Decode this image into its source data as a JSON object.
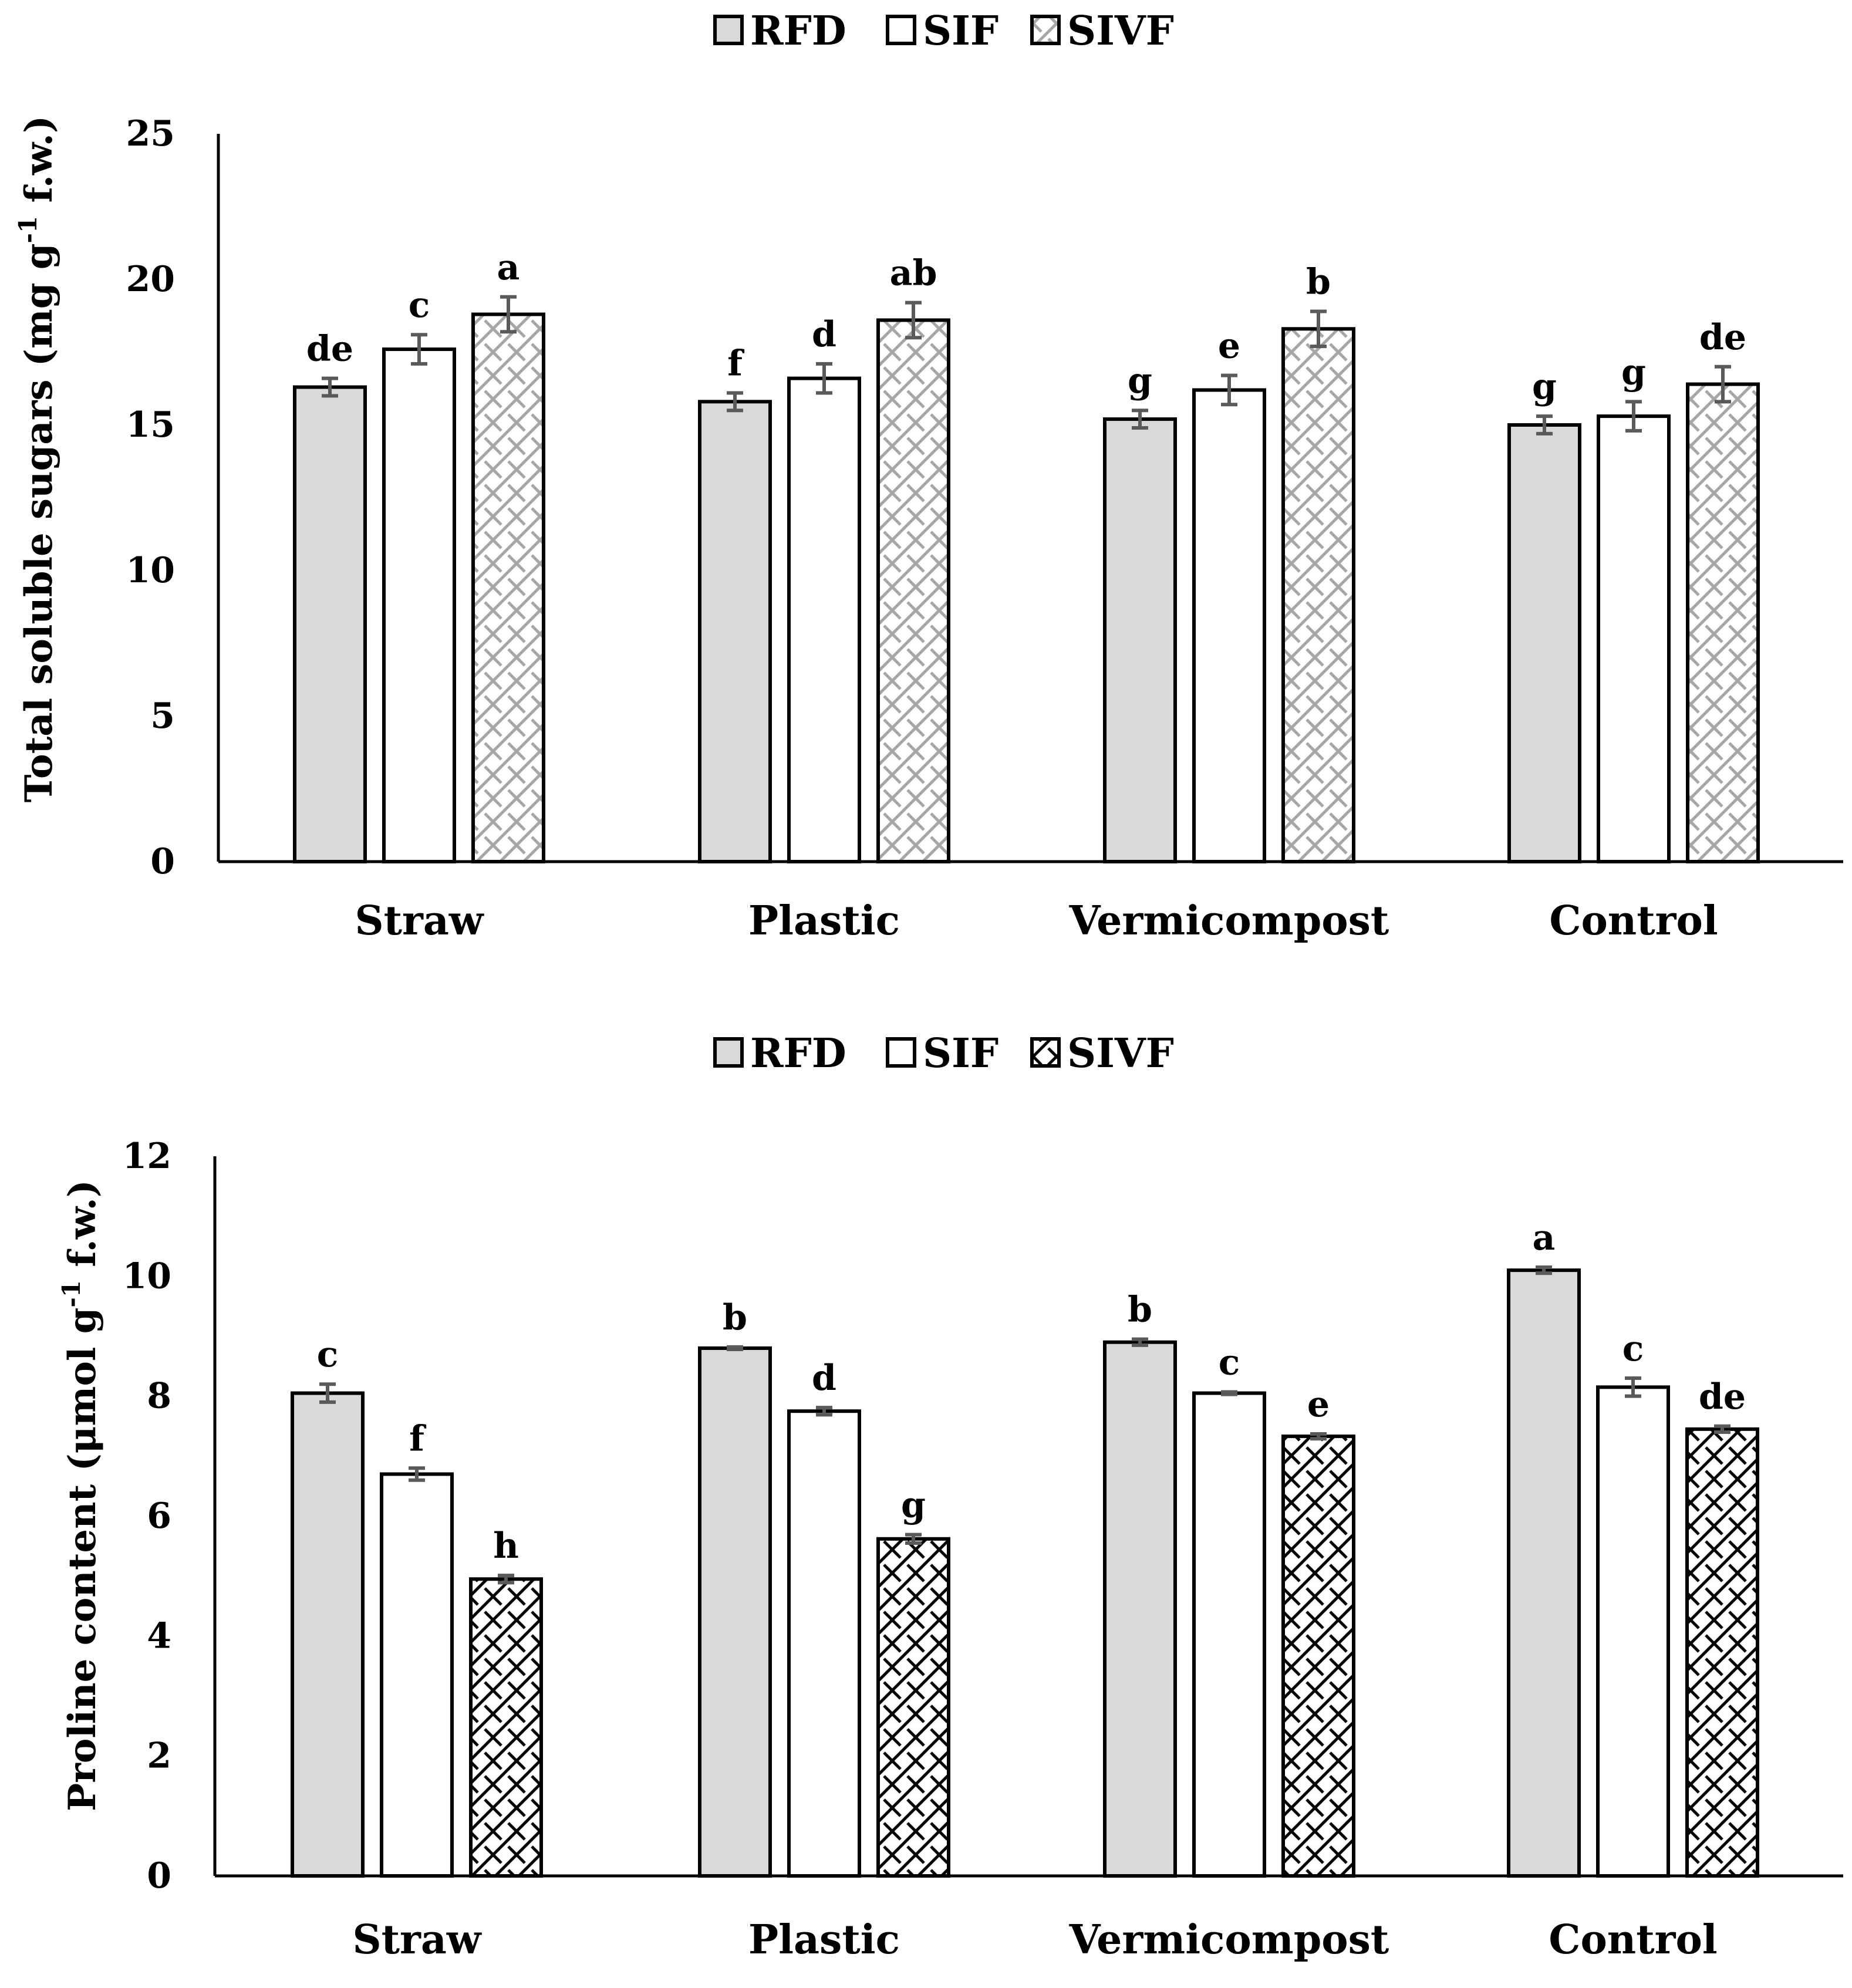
{
  "colors": {
    "RFD": "#d9d9d9",
    "SIF": "#ffffff",
    "SIVF_light": "#a6a6a6",
    "SIVF_dark": "#000000",
    "error_bar": "#5a5a5a"
  },
  "chart_data": [
    {
      "type": "bar",
      "title": "",
      "xlabel": "",
      "ylabel": "Total soluble sugars (mg g",
      "ylabel_sup": "-1",
      "ylabel_tail": " f.w.)",
      "ylim": [
        0,
        25
      ],
      "yticks": [
        0,
        5,
        10,
        15,
        20,
        25
      ],
      "grid": false,
      "legend_position": "top-center",
      "legend": [
        "RFD",
        "SIF",
        "SIVF"
      ],
      "categories": [
        "Straw",
        "Plastic",
        "Vermicompost",
        "Control"
      ],
      "series": [
        {
          "name": "RFD",
          "values": [
            16.3,
            15.8,
            15.2,
            15.0
          ],
          "errors": [
            0.3,
            0.3,
            0.3,
            0.3
          ],
          "letters": [
            "de",
            "f",
            "g",
            "g"
          ]
        },
        {
          "name": "SIF",
          "values": [
            17.6,
            16.6,
            16.2,
            15.3
          ],
          "errors": [
            0.5,
            0.5,
            0.5,
            0.5
          ],
          "letters": [
            "c",
            "d",
            "e",
            "g"
          ]
        },
        {
          "name": "SIVF",
          "values": [
            18.8,
            18.6,
            18.3,
            16.4
          ],
          "errors": [
            0.6,
            0.6,
            0.6,
            0.6
          ],
          "letters": [
            "a",
            "ab",
            "b",
            "de"
          ]
        }
      ]
    },
    {
      "type": "bar",
      "title": "",
      "xlabel": "",
      "ylabel": "Proline content (μmol g",
      "ylabel_sup": "-1",
      "ylabel_tail": " f.w.)",
      "ylim": [
        0,
        12
      ],
      "yticks": [
        0,
        2,
        4,
        6,
        8,
        10,
        12
      ],
      "grid": false,
      "legend_position": "top-center",
      "legend": [
        "RFD",
        "SIF",
        "SIVF"
      ],
      "categories": [
        "Straw",
        "Plastic",
        "Vermicompost",
        "Control"
      ],
      "series": [
        {
          "name": "RFD",
          "values": [
            8.05,
            8.8,
            8.9,
            10.1
          ],
          "errors": [
            0.15,
            0.02,
            0.05,
            0.05
          ],
          "letters": [
            "c",
            "b",
            "b",
            "a"
          ]
        },
        {
          "name": "SIF",
          "values": [
            6.7,
            7.75,
            8.05,
            8.15
          ],
          "errors": [
            0.1,
            0.06,
            0.02,
            0.15
          ],
          "letters": [
            "f",
            "d",
            "c",
            "c"
          ]
        },
        {
          "name": "SIVF",
          "values": [
            4.95,
            5.62,
            7.33,
            7.45
          ],
          "errors": [
            0.06,
            0.07,
            0.04,
            0.05
          ],
          "letters": [
            "h",
            "g",
            "e",
            "de"
          ]
        }
      ]
    }
  ]
}
